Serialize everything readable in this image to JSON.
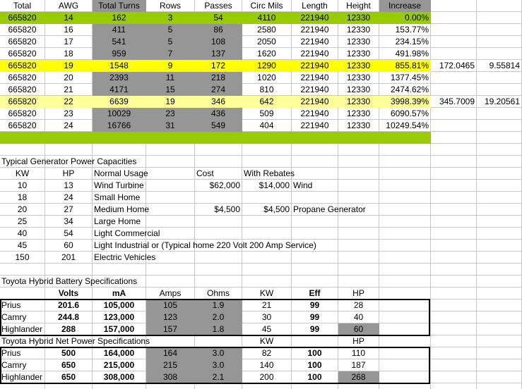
{
  "colors": {
    "gray": "#969696",
    "green": "#99cc00",
    "yellow": "#ffff00",
    "light_yellow": "#ffff99",
    "border": "#000000"
  },
  "wire_table": {
    "headers": [
      "Total",
      "AWG",
      "Total Turns",
      "Rows",
      "Passes",
      "Circ Mils",
      "Length",
      "Height",
      "Increase"
    ],
    "rows": [
      {
        "cells": [
          "665820",
          "14",
          "162",
          "3",
          "54",
          "4110",
          "221940",
          "12330",
          "0.00%"
        ],
        "extra": [
          "",
          ""
        ],
        "highlight": "green"
      },
      {
        "cells": [
          "665820",
          "16",
          "411",
          "5",
          "86",
          "2580",
          "221940",
          "12330",
          "153.77%"
        ],
        "extra": [
          "",
          ""
        ],
        "highlight": ""
      },
      {
        "cells": [
          "665820",
          "17",
          "541",
          "5",
          "108",
          "2050",
          "221940",
          "12330",
          "234.15%"
        ],
        "extra": [
          "",
          ""
        ],
        "highlight": ""
      },
      {
        "cells": [
          "665820",
          "18",
          "959",
          "7",
          "137",
          "1620",
          "221940",
          "12330",
          "491.98%"
        ],
        "extra": [
          "",
          ""
        ],
        "highlight": ""
      },
      {
        "cells": [
          "665820",
          "19",
          "1548",
          "9",
          "172",
          "1290",
          "221940",
          "12330",
          "855.81%"
        ],
        "extra": [
          "172.0465",
          "9.55814"
        ],
        "highlight": "yellow"
      },
      {
        "cells": [
          "665820",
          "20",
          "2393",
          "11",
          "218",
          "1020",
          "221940",
          "12330",
          "1377.45%"
        ],
        "extra": [
          "",
          ""
        ],
        "highlight": ""
      },
      {
        "cells": [
          "665820",
          "21",
          "4171",
          "15",
          "274",
          "810",
          "221940",
          "12330",
          "2474.62%"
        ],
        "extra": [
          "",
          ""
        ],
        "highlight": ""
      },
      {
        "cells": [
          "665820",
          "22",
          "6639",
          "19",
          "346",
          "642",
          "221940",
          "12330",
          "3998.39%"
        ],
        "extra": [
          "345.7009",
          "19.20561"
        ],
        "highlight": "light_yellow"
      },
      {
        "cells": [
          "665820",
          "23",
          "10029",
          "23",
          "436",
          "509",
          "221940",
          "12330",
          "6090.57%"
        ],
        "extra": [
          "",
          ""
        ],
        "highlight": ""
      },
      {
        "cells": [
          "665820",
          "24",
          "16766",
          "31",
          "549",
          "404",
          "221940",
          "12330",
          "10249.54%"
        ],
        "extra": [
          "",
          ""
        ],
        "highlight": ""
      }
    ]
  },
  "generator": {
    "title": "Typical Generator Power Capacities",
    "headers": {
      "kw": "KW",
      "hp": "HP",
      "usage": "Normal Usage",
      "cost": "Cost",
      "rebates": "With Rebates"
    },
    "rows": [
      {
        "kw": "10",
        "hp": "13",
        "usage": "Wind Turbine",
        "cost": "$62,000",
        "rebate": "$14,000",
        "note": "Wind"
      },
      {
        "kw": "18",
        "hp": "24",
        "usage": "Small Home",
        "cost": "",
        "rebate": "",
        "note": ""
      },
      {
        "kw": "20",
        "hp": "27",
        "usage": "Medium Home",
        "cost": "$4,500",
        "rebate": "$4,500",
        "note": "Propane Generator"
      },
      {
        "kw": "25",
        "hp": "34",
        "usage": "Large Home",
        "cost": "",
        "rebate": "",
        "note": ""
      },
      {
        "kw": "40",
        "hp": "54",
        "usage": "Light Commercial",
        "cost": "",
        "rebate": "",
        "note": ""
      },
      {
        "kw": "45",
        "hp": "60",
        "usage": "Light Industrial or (Typical home 220 Volt 200 Amp Service)",
        "cost": "",
        "rebate": "",
        "note": ""
      },
      {
        "kw": "150",
        "hp": "201",
        "usage": "Electric Vehicles",
        "cost": "",
        "rebate": "",
        "note": ""
      }
    ]
  },
  "battery": {
    "title": "Toyota Hybrid Battery Specifications",
    "headers": [
      "",
      "Volts",
      "mA",
      "Amps",
      "Ohms",
      "KW",
      "Eff",
      "HP"
    ],
    "rows": [
      [
        "Prius",
        "201.6",
        "105,000",
        "105",
        "1.9",
        "21",
        "99",
        "28"
      ],
      [
        "Camry",
        "244.8",
        "123,000",
        "123",
        "2.0",
        "30",
        "99",
        "40"
      ],
      [
        "Highlander",
        "288",
        "157,000",
        "157",
        "1.8",
        "45",
        "99",
        "60"
      ]
    ]
  },
  "net_power": {
    "title": "Toyota Hybrid Net Power Specifications",
    "headers": [
      "",
      "",
      "",
      "",
      "",
      "KW",
      "",
      "HP"
    ],
    "rows": [
      [
        "Prius",
        "500",
        "164,000",
        "164",
        "3.0",
        "82",
        "100",
        "110"
      ],
      [
        "Camry",
        "650",
        "215,000",
        "215",
        "3.0",
        "140",
        "100",
        "187"
      ],
      [
        "Highlander",
        "650",
        "308,000",
        "308",
        "2.1",
        "200",
        "100",
        "268"
      ]
    ]
  }
}
